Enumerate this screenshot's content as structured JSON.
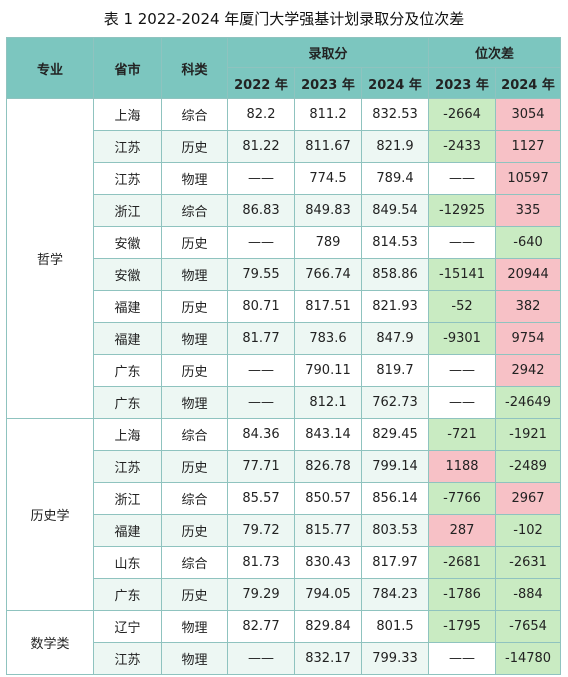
{
  "title": "表 1  2022-2024 年厦门大学强基计划录取分及位次差",
  "headers": {
    "major": "专业",
    "province": "省市",
    "subject": "科类",
    "score_group": "录取分",
    "rank_group": "位次差",
    "score_years": [
      "2022 年",
      "2023 年",
      "2024 年"
    ],
    "rank_years": [
      "2023 年",
      "2024 年"
    ]
  },
  "groups": [
    {
      "major": "哲学",
      "rows": [
        {
          "province": "上海",
          "subject": "综合",
          "s2022": "82.2",
          "s2023": "811.2",
          "s2024": "832.53",
          "r2023": "-2664",
          "r2024": "3054"
        },
        {
          "province": "江苏",
          "subject": "历史",
          "s2022": "81.22",
          "s2023": "811.67",
          "s2024": "821.9",
          "r2023": "-2433",
          "r2024": "1127"
        },
        {
          "province": "江苏",
          "subject": "物理",
          "s2022": "——",
          "s2023": "774.5",
          "s2024": "789.4",
          "r2023": "——",
          "r2024": "10597"
        },
        {
          "province": "浙江",
          "subject": "综合",
          "s2022": "86.83",
          "s2023": "849.83",
          "s2024": "849.54",
          "r2023": "-12925",
          "r2024": "335"
        },
        {
          "province": "安徽",
          "subject": "历史",
          "s2022": "——",
          "s2023": "789",
          "s2024": "814.53",
          "r2023": "——",
          "r2024": "-640"
        },
        {
          "province": "安徽",
          "subject": "物理",
          "s2022": "79.55",
          "s2023": "766.74",
          "s2024": "858.86",
          "r2023": "-15141",
          "r2024": "20944"
        },
        {
          "province": "福建",
          "subject": "历史",
          "s2022": "80.71",
          "s2023": "817.51",
          "s2024": "821.93",
          "r2023": "-52",
          "r2024": "382"
        },
        {
          "province": "福建",
          "subject": "物理",
          "s2022": "81.77",
          "s2023": "783.6",
          "s2024": "847.9",
          "r2023": "-9301",
          "r2024": "9754"
        },
        {
          "province": "广东",
          "subject": "历史",
          "s2022": "——",
          "s2023": "790.11",
          "s2024": "819.7",
          "r2023": "——",
          "r2024": "2942"
        },
        {
          "province": "广东",
          "subject": "物理",
          "s2022": "——",
          "s2023": "812.1",
          "s2024": "762.73",
          "r2023": "——",
          "r2024": "-24649"
        }
      ]
    },
    {
      "major": "历史学",
      "rows": [
        {
          "province": "上海",
          "subject": "综合",
          "s2022": "84.36",
          "s2023": "843.14",
          "s2024": "829.45",
          "r2023": "-721",
          "r2024": "-1921"
        },
        {
          "province": "江苏",
          "subject": "历史",
          "s2022": "77.71",
          "s2023": "826.78",
          "s2024": "799.14",
          "r2023": "1188",
          "r2024": "-2489"
        },
        {
          "province": "浙江",
          "subject": "综合",
          "s2022": "85.57",
          "s2023": "850.57",
          "s2024": "856.14",
          "r2023": "-7766",
          "r2024": "2967"
        },
        {
          "province": "福建",
          "subject": "历史",
          "s2022": "79.72",
          "s2023": "815.77",
          "s2024": "803.53",
          "r2023": "287",
          "r2024": "-102"
        },
        {
          "province": "山东",
          "subject": "综合",
          "s2022": "81.73",
          "s2023": "830.43",
          "s2024": "817.97",
          "r2023": "-2681",
          "r2024": "-2631"
        },
        {
          "province": "广东",
          "subject": "历史",
          "s2022": "79.29",
          "s2023": "794.05",
          "s2024": "784.23",
          "r2023": "-1786",
          "r2024": "-884"
        }
      ]
    },
    {
      "major": "数学类",
      "rows": [
        {
          "province": "辽宁",
          "subject": "物理",
          "s2022": "82.77",
          "s2023": "829.84",
          "s2024": "801.5",
          "r2023": "-1795",
          "r2024": "-7654"
        },
        {
          "province": "江苏",
          "subject": "物理",
          "s2022": "——",
          "s2023": "832.17",
          "s2024": "799.33",
          "r2023": "——",
          "r2024": "-14780"
        }
      ]
    }
  ]
}
